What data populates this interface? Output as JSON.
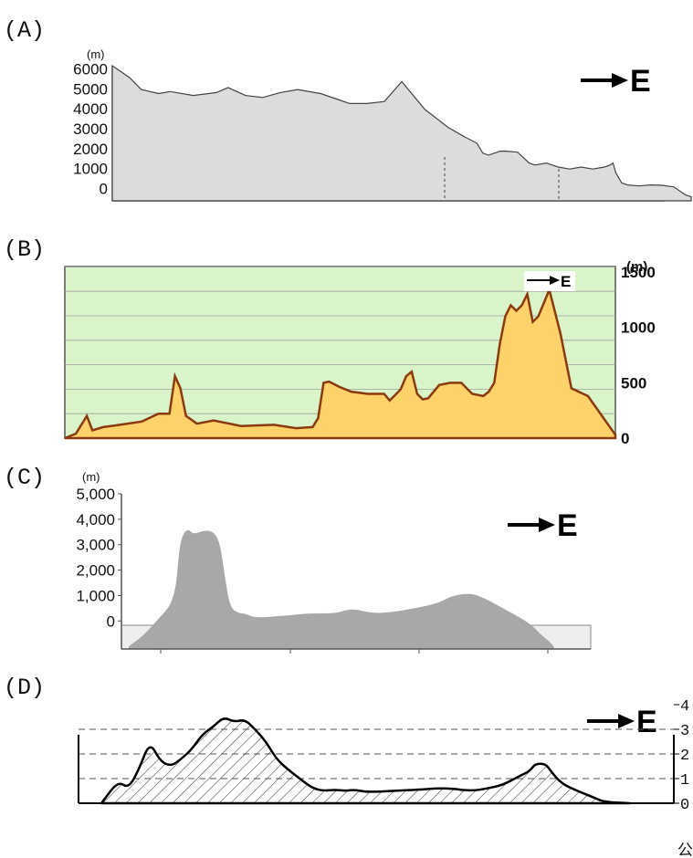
{
  "panels": [
    {
      "label": "(A)",
      "unit": "(m)",
      "direction": "E",
      "yticks": [
        "6000",
        "5000",
        "4000",
        "3000",
        "2000",
        "1000",
        "0"
      ]
    },
    {
      "label": "(B)",
      "unit": "(m)",
      "direction": "E",
      "yticks": [
        "1500",
        "1000",
        "500",
        "0"
      ]
    },
    {
      "label": "(C)",
      "unit": "(m)",
      "direction": "E",
      "yticks": [
        "5,000",
        "4,000",
        "3,000",
        "2,000",
        "1,000",
        "0"
      ]
    },
    {
      "label": "(D)",
      "unit": "",
      "direction": "E",
      "yticks": [
        "4",
        "3",
        "2",
        "1",
        "0"
      ],
      "unit_bottom": "公"
    }
  ],
  "colors": {
    "fill_a": "#dcdcdc",
    "fill_b": "#fdd26b",
    "bg_b": "#d9f4c9",
    "line_b": "#8b3a0f",
    "fill_c": "#a8a8a8",
    "sea_c": "#eeeeee"
  },
  "chart_data": [
    {
      "type": "area",
      "title": "",
      "ylabel": "(m)",
      "ylim": [
        0,
        6000
      ],
      "grid": false,
      "x": [
        0,
        3,
        5,
        8,
        10,
        14,
        18,
        20,
        23,
        26,
        29,
        32,
        36,
        39,
        41,
        44,
        47,
        50,
        54,
        58,
        61,
        63,
        64,
        65,
        66,
        67,
        68,
        70,
        72,
        73,
        75,
        77,
        79,
        81,
        83,
        85,
        86,
        86.5,
        87,
        88,
        89,
        91,
        93,
        95,
        97,
        99,
        100
      ],
      "values": [
        6400,
        5800,
        5200,
        5000,
        5100,
        4900,
        5050,
        5300,
        4900,
        4800,
        5050,
        5200,
        5000,
        4700,
        4500,
        4500,
        4600,
        5600,
        4200,
        3300,
        2800,
        2500,
        2000,
        1900,
        2000,
        2100,
        2100,
        2050,
        1500,
        1400,
        1500,
        1300,
        1200,
        1300,
        1200,
        1300,
        1400,
        1500,
        1000,
        500,
        400,
        350,
        400,
        380,
        300,
        -100,
        -200
      ]
    },
    {
      "type": "area",
      "title": "",
      "ylabel": "(m)",
      "ylim": [
        0,
        1500
      ],
      "grid": true,
      "x": [
        0,
        2,
        4,
        5,
        7,
        10,
        14,
        17,
        19,
        20,
        21,
        22,
        24,
        27,
        32,
        38,
        42,
        45,
        46,
        47,
        48,
        50,
        52,
        55,
        58,
        59,
        60,
        61,
        62,
        63,
        64,
        65,
        66,
        68,
        70,
        72,
        74,
        76,
        77,
        78,
        79,
        80,
        81,
        82,
        83,
        84,
        85,
        86,
        88,
        90,
        92,
        95,
        100
      ],
      "values": [
        0,
        40,
        200,
        70,
        100,
        120,
        150,
        220,
        220,
        560,
        450,
        200,
        130,
        160,
        110,
        120,
        90,
        100,
        180,
        500,
        510,
        460,
        420,
        400,
        400,
        340,
        390,
        440,
        560,
        600,
        400,
        350,
        360,
        480,
        500,
        500,
        400,
        380,
        420,
        500,
        850,
        1100,
        1200,
        1150,
        1200,
        1300,
        1050,
        1100,
        1340,
        950,
        450,
        380,
        30
      ]
    },
    {
      "type": "area",
      "title": "",
      "ylabel": "(m)",
      "ylim": [
        -1000,
        5000
      ],
      "grid": false,
      "x": [
        0,
        3,
        6,
        10,
        11,
        12,
        13,
        14,
        17,
        19,
        20,
        21,
        22,
        24,
        25,
        27,
        30,
        36,
        39,
        45,
        48,
        53,
        57,
        62,
        67,
        70,
        74,
        77,
        80,
        83,
        86,
        88,
        89,
        91,
        92
      ],
      "values": [
        -1000,
        -600,
        0,
        800,
        3000,
        3500,
        3600,
        3400,
        3600,
        3400,
        2800,
        1500,
        500,
        300,
        300,
        150,
        150,
        250,
        300,
        300,
        500,
        300,
        350,
        500,
        700,
        1000,
        1100,
        900,
        600,
        300,
        0,
        -300,
        -500,
        -800,
        -1000
      ]
    },
    {
      "type": "area",
      "title": "",
      "ylabel": "",
      "ylim": [
        0,
        4
      ],
      "grid": true,
      "x": [
        0,
        3,
        5,
        7,
        9,
        11,
        13,
        15,
        17,
        19,
        21,
        23,
        25,
        27,
        29,
        31,
        33,
        35,
        38,
        40,
        42,
        44,
        46,
        48,
        50,
        55,
        60,
        63,
        66,
        70,
        73,
        76,
        79,
        81,
        82,
        84,
        85,
        87,
        90,
        93,
        95,
        100
      ],
      "values": [
        0.05,
        0.9,
        0.6,
        1.4,
        2.5,
        1.7,
        1.5,
        1.8,
        2.2,
        2.8,
        3.1,
        3.5,
        3.3,
        3.4,
        3.0,
        2.5,
        1.8,
        1.4,
        0.9,
        0.6,
        0.5,
        0.55,
        0.5,
        0.55,
        0.45,
        0.5,
        0.55,
        0.6,
        0.6,
        0.5,
        0.6,
        0.75,
        1.1,
        1.3,
        1.6,
        1.6,
        1.3,
        0.8,
        0.5,
        0.25,
        0.05,
        0
      ]
    }
  ]
}
